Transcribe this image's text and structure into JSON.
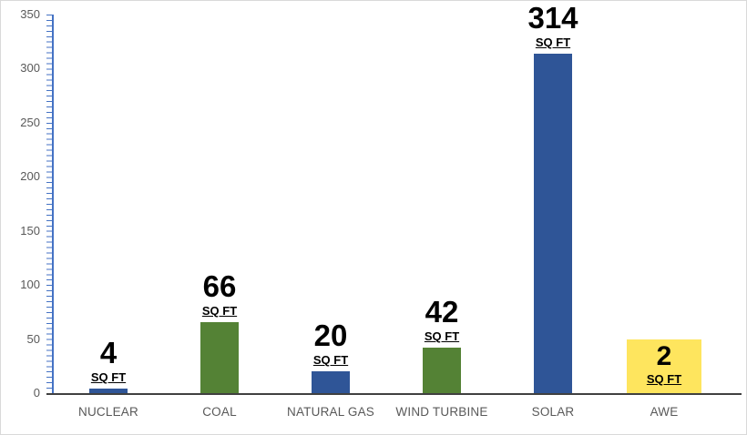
{
  "chart_data": {
    "type": "bar",
    "title": "",
    "xlabel": "",
    "ylabel": "",
    "categories": [
      "NUCLEAR",
      "COAL",
      "NATURAL GAS",
      "WIND TURBINE",
      "SOLAR",
      "AWE"
    ],
    "values": [
      4,
      66,
      20,
      42,
      314,
      2
    ],
    "unit_label": "SQ FT",
    "ylim": [
      0,
      350
    ],
    "yticks": [
      0,
      50,
      100,
      150,
      200,
      250,
      300,
      350
    ],
    "grid": "off",
    "legend": "none",
    "series_color_by_category": [
      "#2F5597",
      "#548235",
      "#2F5597",
      "#548235",
      "#2F5597",
      "#FEE55E"
    ],
    "colors": {
      "blue_bar": "#2F5597",
      "green_bar": "#548235",
      "yellow_highlight": "#FEE55E",
      "axis_line": "#4472C4",
      "x_axis_line": "#404040",
      "tick_text": "#595959",
      "label_text": "#000000"
    },
    "highlight": {
      "category": "AWE",
      "style": "yellow-filled-box",
      "box_top_value": 50
    }
  }
}
